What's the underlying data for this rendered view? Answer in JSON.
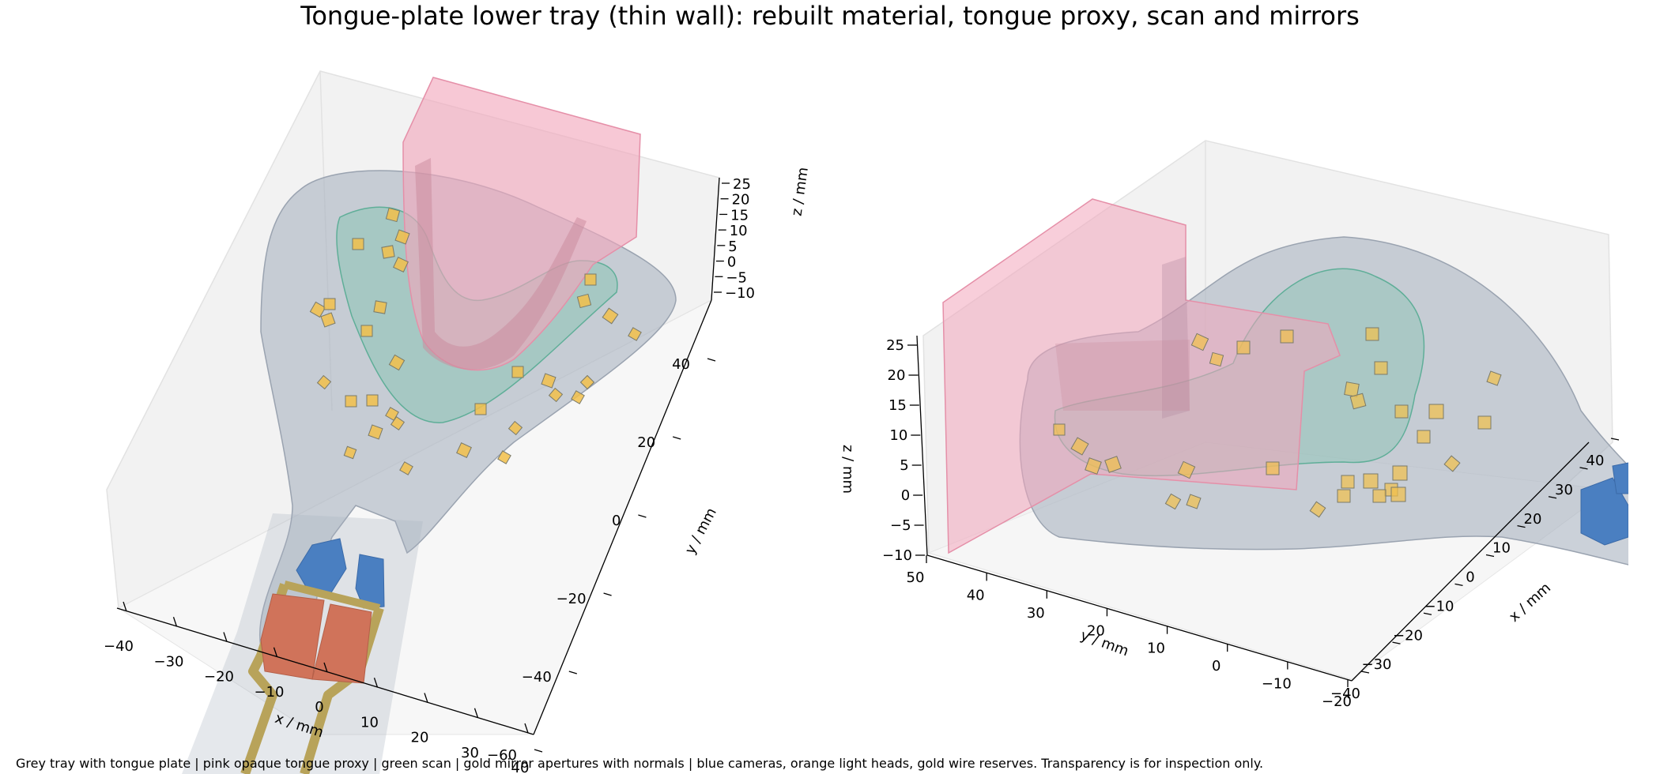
{
  "figure": {
    "title": "Tongue-plate lower tray (thin wall): rebuilt material, tongue proxy, scan and mirrors",
    "caption": "Grey tray with tongue plate | pink opaque tongue proxy | green scan | gold mirror apertures with normals | blue cameras, orange light heads, gold wire reserves. Transparency is for inspection only."
  },
  "colors": {
    "tray": "#a9b2bf",
    "tongue_proxy": "#f2a6bc",
    "scan": "#7fc4b0",
    "mirror": "#f2c04a",
    "camera": "#4a7fc1",
    "light_head": "#d0735a",
    "wire": "#b8a35a",
    "pane": "#ececec"
  },
  "chart_data": [
    {
      "type": "scatter",
      "view": "top-down oblique",
      "xlabel": "x / mm",
      "ylabel": "y / mm",
      "zlabel": "z / mm",
      "x_ticks": [
        "−40",
        "−30",
        "−20",
        "−10",
        "0",
        "10",
        "20",
        "30",
        "40"
      ],
      "y_ticks": [
        "−60",
        "−40",
        "−20",
        "0",
        "20",
        "40"
      ],
      "z_ticks": [
        "−10",
        "−5",
        "0",
        "5",
        "10",
        "15",
        "20",
        "25"
      ],
      "xlim": [
        -40,
        40
      ],
      "ylim": [
        -60,
        40
      ],
      "zlim": [
        -10,
        25
      ],
      "grid": false
    },
    {
      "type": "scatter",
      "view": "side oblique",
      "xlabel": "x / mm",
      "ylabel": "y / mm",
      "zlabel": "z / mm",
      "x_ticks": [
        "−40",
        "−30",
        "−20",
        "−10",
        "0",
        "10",
        "20",
        "30",
        "40"
      ],
      "y_ticks": [
        "−20",
        "−10",
        "0",
        "10",
        "20",
        "30",
        "40",
        "50"
      ],
      "z_ticks": [
        "−10",
        "−5",
        "0",
        "5",
        "10",
        "15",
        "20",
        "25"
      ],
      "xlim": [
        -40,
        40
      ],
      "ylim": [
        -20,
        50
      ],
      "zlim": [
        -10,
        25
      ],
      "grid": false
    }
  ]
}
